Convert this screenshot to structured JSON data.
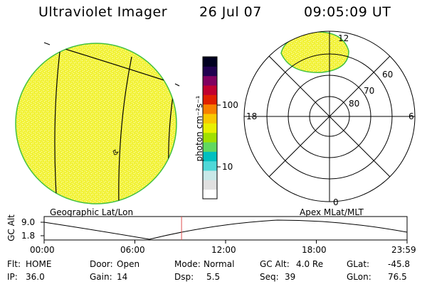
{
  "header": {
    "instrument": "Ultraviolet Imager",
    "date": "26 Jul 07",
    "time": "09:05:09 UT"
  },
  "left_panel": {
    "caption": "Geographic Lat/Lon"
  },
  "right_panel": {
    "caption": "Apex MLat/MLT",
    "mlt_labels": [
      "12",
      "18",
      "6",
      "0"
    ],
    "lat_labels": [
      "60",
      "70",
      "80"
    ]
  },
  "colorbar": {
    "unit_label": "photon cm⁻²s⁻¹",
    "ticks": [
      "100",
      "10"
    ],
    "colors": [
      "#ffffff",
      "#e0e0e0",
      "#c8e8e8",
      "#50d8d8",
      "#00c0c0",
      "#60d860",
      "#a0e000",
      "#e8f000",
      "#f8c800",
      "#f88000",
      "#e02000",
      "#c00030",
      "#800060",
      "#200050",
      "#000020"
    ]
  },
  "altitude_plot": {
    "ylabel": "GC Alt",
    "yticks": [
      "9.0",
      "1.8"
    ],
    "xticks": [
      "00:00",
      "06:00",
      "12:00",
      "18:00",
      "23:59"
    ],
    "current_time_hours": 9.086
  },
  "status": {
    "row1": [
      {
        "label": "Flt:",
        "value": "HOME"
      },
      {
        "label": "Door:",
        "value": "Open"
      },
      {
        "label": "Mode:",
        "value": "Normal"
      },
      {
        "label": "GC Alt:",
        "value": "4.0 Re"
      },
      {
        "label": "GLat:",
        "value": "-45.8"
      }
    ],
    "row2": [
      {
        "label": "IP:",
        "value": "36.0"
      },
      {
        "label": "Gain:",
        "value": "14"
      },
      {
        "label": "Dsp:",
        "value": "5.5"
      },
      {
        "label": "Seq:",
        "value": "39"
      },
      {
        "label": "GLon:",
        "value": "76.5"
      }
    ]
  },
  "colors": {
    "disk_fill": "#f0f040",
    "disk_edge": "#40c040",
    "marker": "#e05050"
  }
}
